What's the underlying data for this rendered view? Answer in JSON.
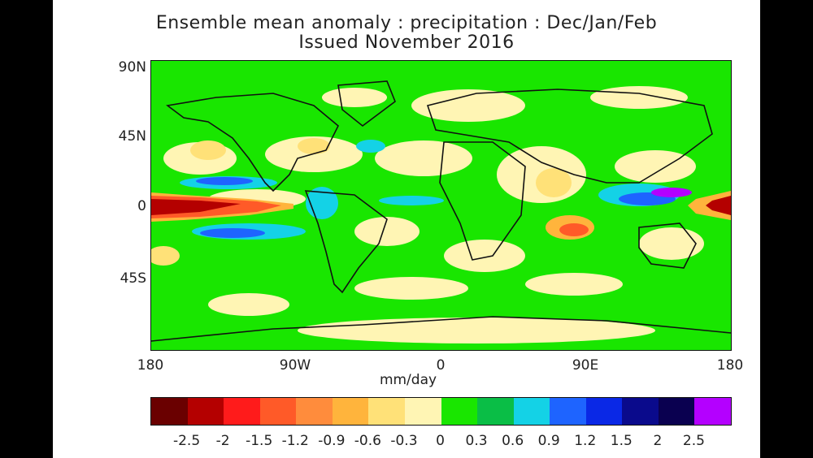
{
  "title": "Ensemble mean anomaly : precipitation : Dec/Jan/Feb",
  "subtitle": "Issued November 2016",
  "units": "mm/day",
  "lat_labels": [
    "90N",
    "45N",
    "0",
    "45S"
  ],
  "lon_labels": [
    "180",
    "90W",
    "0",
    "90E",
    "180"
  ],
  "colorbar": {
    "colors": [
      "#6a0000",
      "#b40000",
      "#ff1b1b",
      "#ff5a28",
      "#ff8c3c",
      "#ffb43c",
      "#ffe178",
      "#fff5b4",
      "#19e600",
      "#0abe46",
      "#14d2e6",
      "#1e64ff",
      "#0a28e6",
      "#0a0a8c",
      "#0a0050",
      "#b400ff"
    ],
    "ticks": [
      "-2.5",
      "-2",
      "-1.5",
      "-1.2",
      "-0.9",
      "-0.6",
      "-0.3",
      "0",
      "0.3",
      "0.6",
      "0.9",
      "1.2",
      "1.5",
      "2",
      "2.5"
    ]
  },
  "palette": {
    "background": "#19e600",
    "dry_light": "#fff5b4",
    "dry": "#ffe178",
    "dry_strong": "#ffb43c",
    "dry_very": "#ff5a28",
    "dry_extreme": "#b40000",
    "wet_light": "#0abe46",
    "wet": "#14d2e6",
    "wet_strong": "#1e64ff",
    "wet_very": "#0a28e6",
    "wet_extreme": "#b400ff"
  }
}
